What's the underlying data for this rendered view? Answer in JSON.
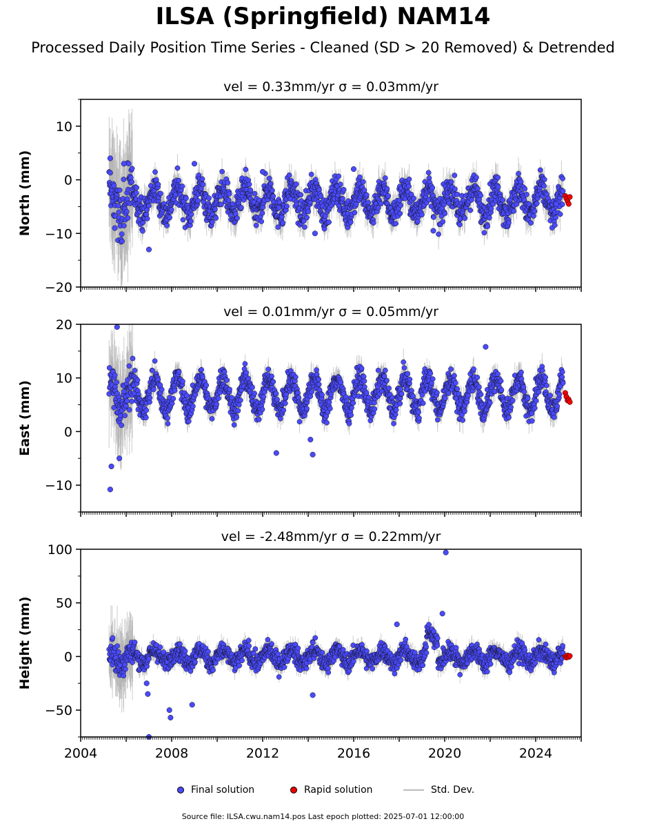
{
  "title": "ILSA (Springfield) NAM14",
  "subtitle": "Processed Daily Position Time Series - Cleaned (SD > 20 Removed) & Detrended",
  "footer": "Source file: ILSA.cwu.nam14.pos  Last epoch plotted: 2025-07-01 12:00:00",
  "legend": {
    "final": "Final solution",
    "rapid": "Rapid solution",
    "stddev": "Std. Dev."
  },
  "colors": {
    "final": "#4a4aff",
    "rapid": "#ee0000",
    "stddev": "#aaaaaa"
  },
  "chart_data": [
    {
      "type": "scatter",
      "title": "vel = 0.33mm/yr   σ = 0.03mm/yr",
      "ylabel": "North (mm)",
      "xlim": [
        2004,
        2026
      ],
      "ylim": [
        -20,
        15
      ],
      "yticks": [
        -20,
        -10,
        0,
        10
      ],
      "ytick_labels": [
        "−20",
        "−10",
        "0",
        "10"
      ],
      "seasonal_amplitude": 2.5,
      "noise": 2.0,
      "x_start": 2005.25,
      "x_end": 2025.2,
      "series": [
        {
          "name": "Final solution",
          "x": [
            2005.3,
            2005.5,
            2005.9,
            2007.0,
            2009.0,
            2012.0,
            2014.3,
            2016.0,
            2019.5,
            2024.9
          ],
          "y": [
            4.0,
            -9.0,
            3.0,
            -13.0,
            3.0,
            1.5,
            -10.0,
            2.0,
            -9.5,
            -4.5
          ]
        },
        {
          "name": "Rapid solution",
          "x": [
            2025.3,
            2025.35,
            2025.4,
            2025.45,
            2025.5
          ],
          "y": [
            -3.0,
            -3.5,
            -4.0,
            -4.5,
            -3.2
          ]
        }
      ]
    },
    {
      "type": "scatter",
      "title": "vel = 0.01mm/yr   σ = 0.05mm/yr",
      "ylabel": "East (mm)",
      "xlim": [
        2004,
        2026
      ],
      "ylim": [
        -15,
        20
      ],
      "yticks": [
        -10,
        0,
        10,
        20
      ],
      "ytick_labels": [
        "−10",
        "0",
        "10",
        "20"
      ],
      "seasonal_amplitude": 3.0,
      "noise": 1.6,
      "x_start": 2005.25,
      "x_end": 2025.2,
      "series": [
        {
          "name": "Final solution",
          "x": [
            2005.3,
            2005.35,
            2005.6,
            2005.7,
            2012.6,
            2014.1,
            2014.2,
            2021.8
          ],
          "y": [
            -10.8,
            -6.5,
            19.5,
            -5.0,
            -4.0,
            -1.5,
            -4.3,
            15.8
          ]
        },
        {
          "name": "Rapid solution",
          "x": [
            2025.3,
            2025.35,
            2025.4,
            2025.45,
            2025.5
          ],
          "y": [
            7.2,
            6.5,
            5.8,
            6.0,
            5.5
          ]
        }
      ]
    },
    {
      "type": "scatter",
      "title": "vel = -2.48mm/yr   σ = 0.22mm/yr",
      "ylabel": "Height (mm)",
      "xlim": [
        2004,
        2026
      ],
      "ylim": [
        -75,
        100
      ],
      "yticks": [
        -50,
        0,
        50,
        100
      ],
      "ytick_labels": [
        "−50",
        "0",
        "50",
        "100"
      ],
      "seasonal_amplitude": 6.0,
      "noise": 6.0,
      "x_start": 2005.25,
      "x_end": 2025.2,
      "series": [
        {
          "name": "Final solution",
          "x": [
            2006.9,
            2006.95,
            2007.0,
            2007.9,
            2007.95,
            2008.9,
            2014.2,
            2017.9,
            2019.9,
            2020.05
          ],
          "y": [
            -25.0,
            -35.0,
            -75.0,
            -50.0,
            -57.0,
            -45.0,
            -36.0,
            30.0,
            40.0,
            97.0
          ]
        },
        {
          "name": "Rapid solution",
          "x": [
            2025.3,
            2025.35,
            2025.4,
            2025.45,
            2025.5
          ],
          "y": [
            0.0,
            -1.0,
            1.0,
            -0.5,
            0.5
          ]
        }
      ]
    }
  ],
  "xticks": [
    2004,
    2008,
    2012,
    2016,
    2020,
    2024
  ],
  "xtick_labels": [
    "2004",
    "2008",
    "2012",
    "2016",
    "2020",
    "2024"
  ]
}
